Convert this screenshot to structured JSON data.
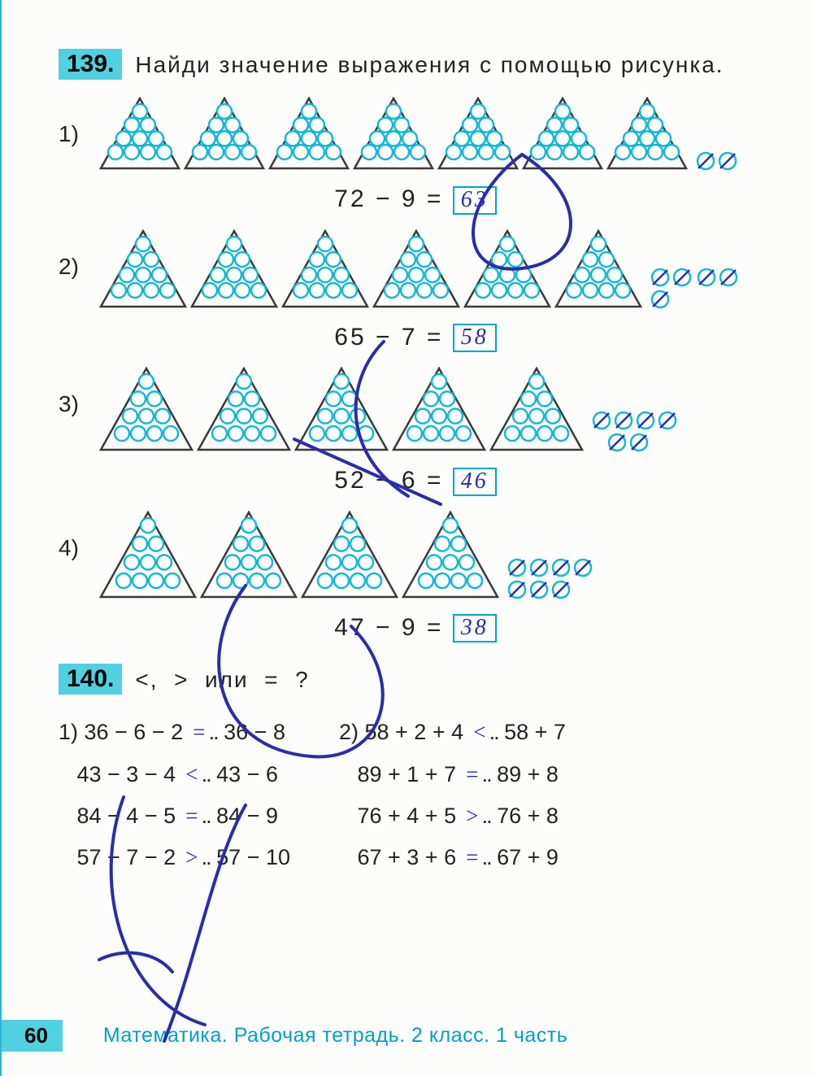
{
  "colors": {
    "accent_bg": "#4fd1e0",
    "accent_stroke": "#00a7c7",
    "circle_stroke": "#14b8d4",
    "circle_fill": "#ffffff",
    "tri_stroke": "#3a3a3a",
    "hw_ink": "#2a2da8",
    "text": "#222222",
    "page_bg": "#fcfcfa",
    "footer_text": "#00a0c8"
  },
  "task139": {
    "number": "139.",
    "prompt": "Найди значение выражения с помощью рисунка.",
    "triangles_circle_count": 10,
    "items": [
      {
        "label": "1)",
        "full_triangles": 7,
        "extra_plain": 0,
        "extra_crossed_in_tri": 0,
        "extra_crossed_out": 2,
        "lhs": "72 − 9 =",
        "answer": "63"
      },
      {
        "label": "2)",
        "full_triangles": 6,
        "extra_plain": 0,
        "extra_crossed_in_tri": 0,
        "extra_crossed_out_rows": [
          [
            true,
            true
          ],
          [
            true,
            true,
            true
          ]
        ],
        "lhs": "65 − 7 =",
        "answer": "58"
      },
      {
        "label": "3)",
        "full_triangles": 5,
        "extra_plain": 0,
        "extra_crossed_in_row": 4,
        "extra_crossed_out": 2,
        "lhs": "52 − 6 =",
        "answer": "46"
      },
      {
        "label": "4)",
        "full_triangles": 4,
        "extra_plain": 0,
        "extra_crossed_out": 7,
        "lhs": "47 − 9 =",
        "answer": "38"
      }
    ]
  },
  "task140": {
    "number": "140.",
    "prompt": "<, > или = ?",
    "col1_label": "1)",
    "col2_label": "2)",
    "col1": [
      {
        "l": "36 − 6 − 2",
        "op": "=",
        "r": "36 − 8"
      },
      {
        "l": "43 − 3 − 4",
        "op": "<",
        "r": "43 − 6"
      },
      {
        "l": "84 − 4 − 5",
        "op": "=",
        "r": "84 − 9"
      },
      {
        "l": "57 − 7 − 2",
        "op": ">",
        "r": "57 − 10"
      }
    ],
    "col2": [
      {
        "l": "58 + 2 + 4",
        "op": "<",
        "r": "58 + 7"
      },
      {
        "l": "89 + 1 + 7",
        "op": "=",
        "r": "89 + 8"
      },
      {
        "l": "76 + 4 + 5",
        "op": ">",
        "r": "76 + 8"
      },
      {
        "l": "67 + 3 + 6",
        "op": "=",
        "r": "67 + 9"
      }
    ]
  },
  "footer": {
    "page": "60",
    "text": "Математика. Рабочая тетрадь. 2 класс. 1 часть"
  },
  "shapes": {
    "triangle_w": 108,
    "triangle_h": 96,
    "circle_r": 9
  }
}
